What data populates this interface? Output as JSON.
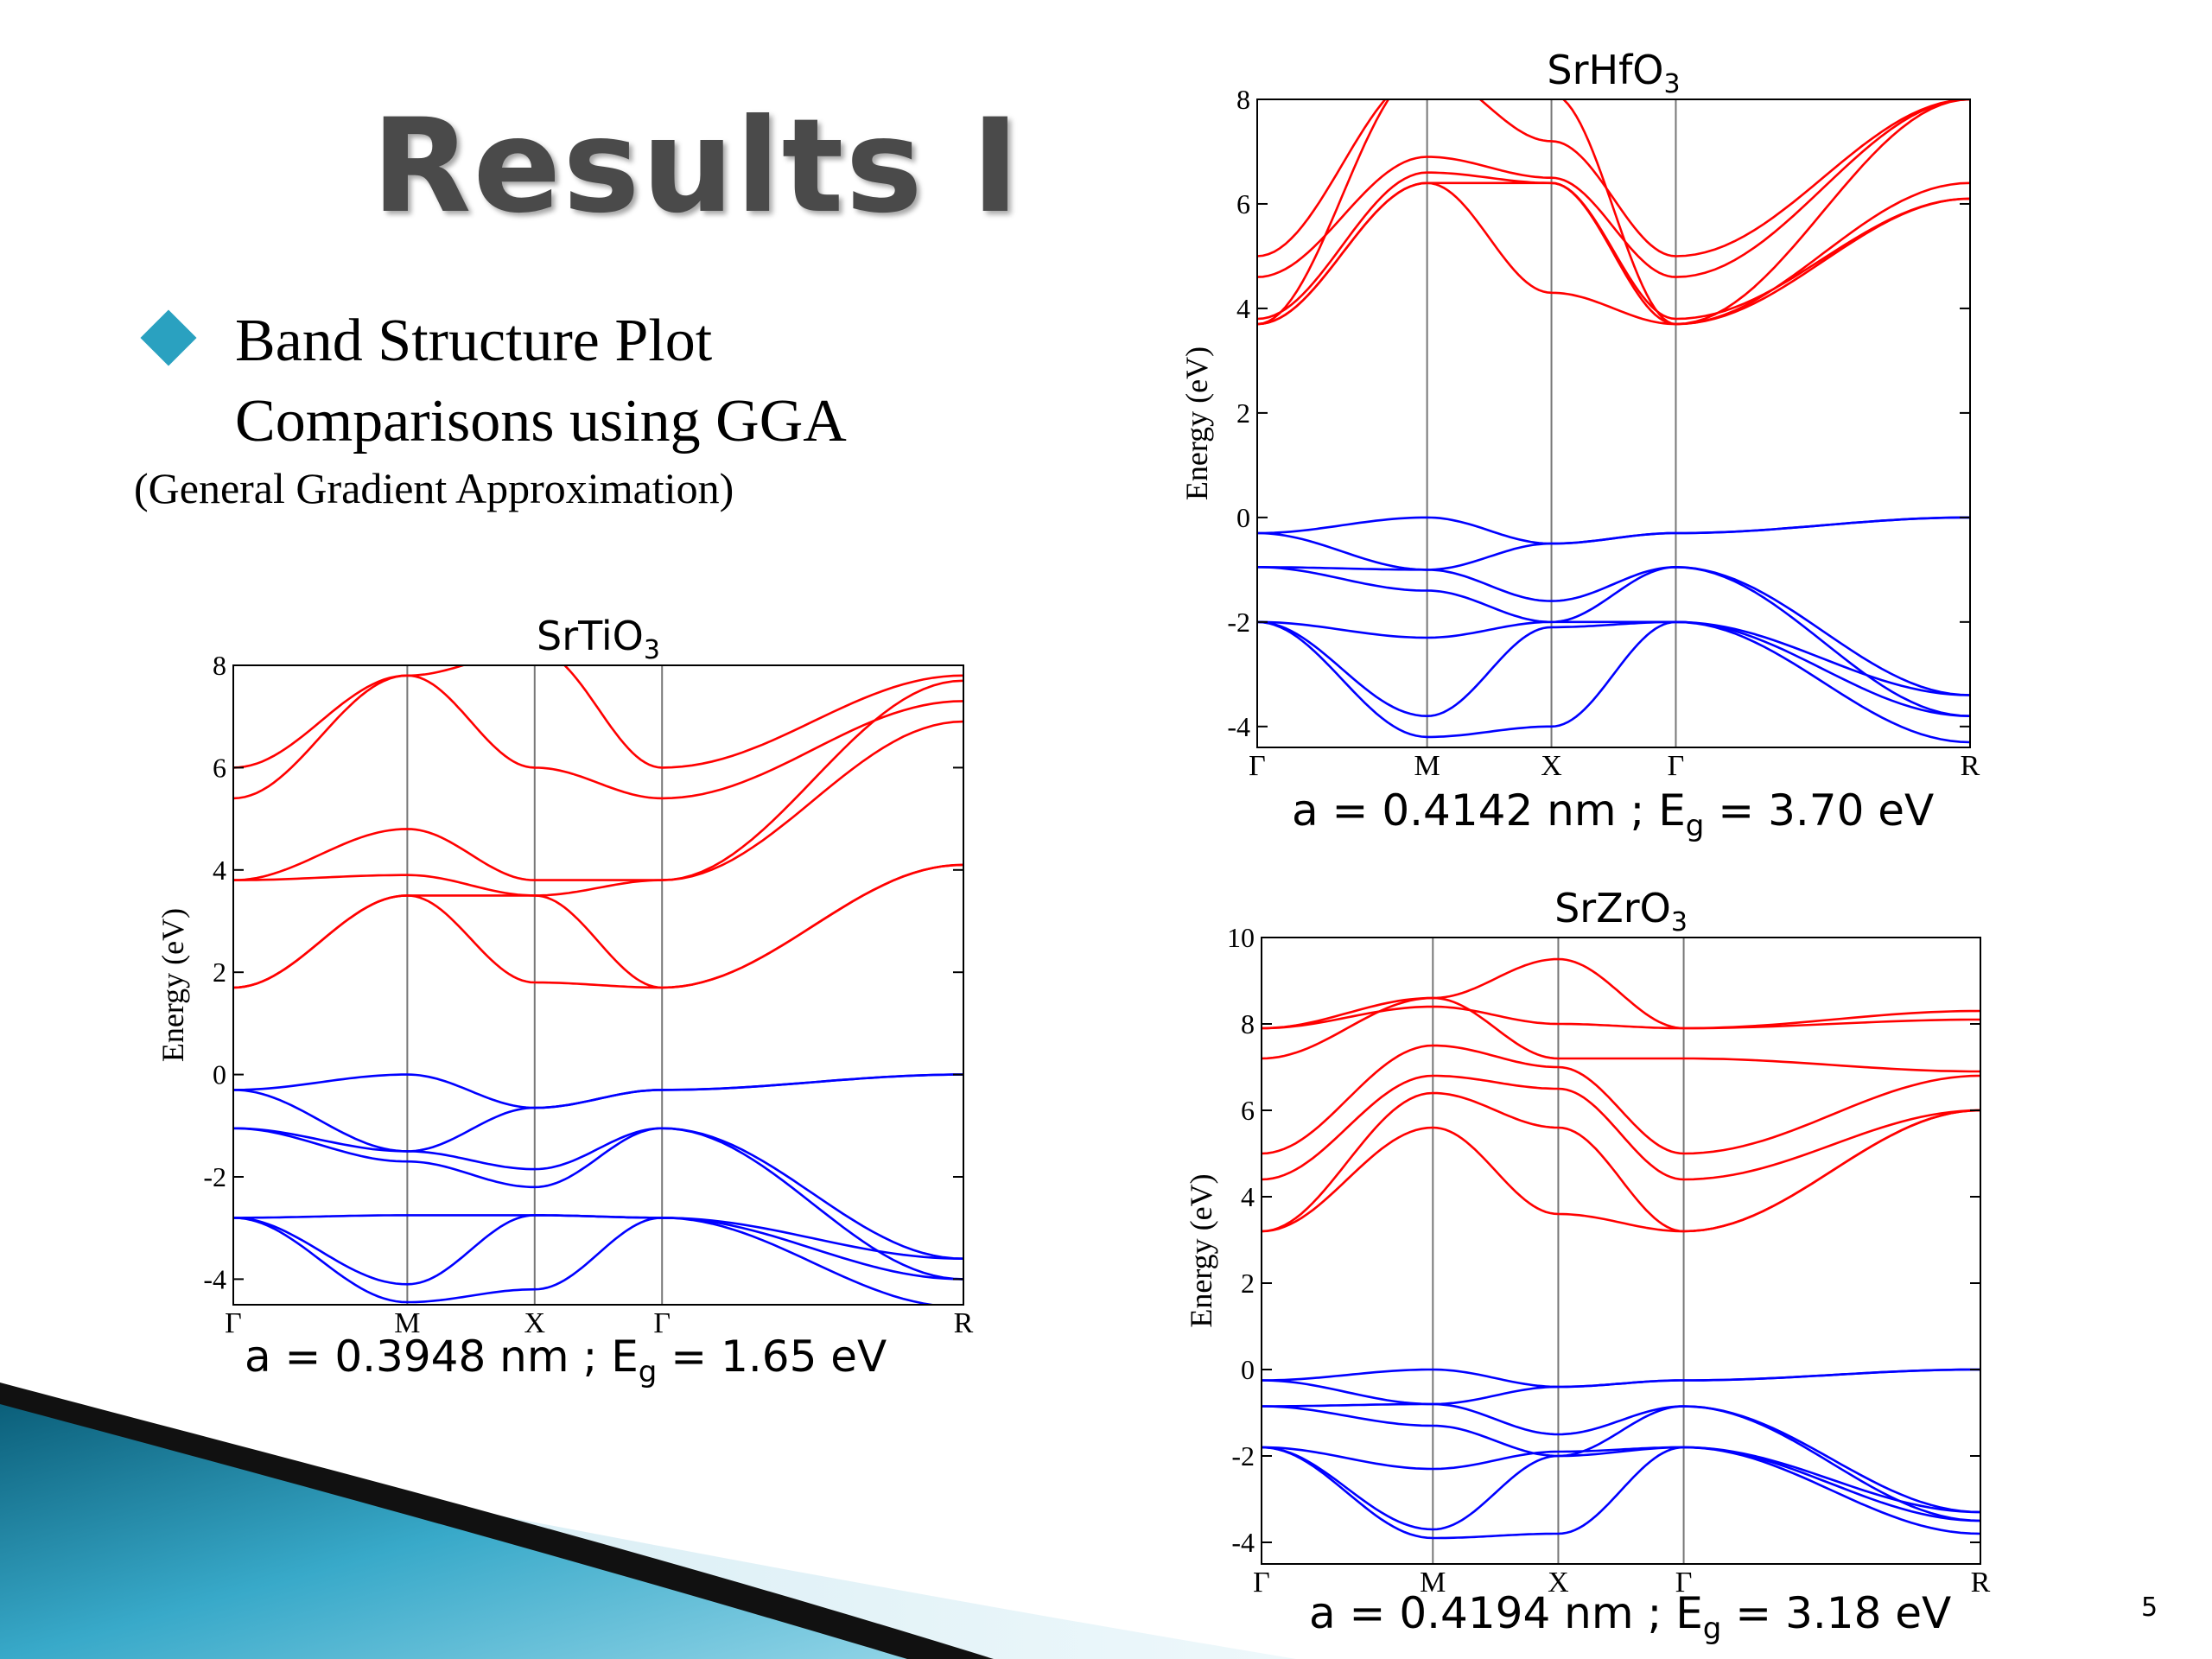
{
  "slide": {
    "title": "Results I",
    "bullet_line1": "Band Structure Plot",
    "bullet_line2": "Comparisons using GGA",
    "bullet_sub": "(General Gradient Approximation)",
    "page_number": "5",
    "colors": {
      "accent": "#2aa1c0",
      "title": "#4a4a4a"
    }
  },
  "plots": [
    {
      "title_main": "SrTiO",
      "title_sub": "3",
      "ylabel": "Energy (eV)",
      "yticks": [
        "-4",
        "-2",
        "0",
        "2",
        "4",
        "6",
        "8"
      ],
      "ylim": [
        -4.5,
        8
      ],
      "kpoints": [
        "Γ",
        "M",
        "X",
        "Γ",
        "R"
      ],
      "kpos": [
        0,
        1,
        1.732,
        2.464,
        4.196
      ],
      "caption": {
        "a_text": "a = 0.3948 nm ; E",
        "sub": "g",
        "eg_text": " = 1.65 eV"
      },
      "conduction_color": "#ff0000",
      "valence_color": "#0000ff",
      "conduction": [
        [
          6.0,
          7.8,
          8.3,
          6.0,
          7.8
        ],
        [
          5.4,
          7.8,
          6.0,
          5.4,
          7.3
        ],
        [
          3.8,
          4.8,
          3.8,
          3.8,
          6.9
        ],
        [
          3.8,
          3.9,
          3.5,
          3.8,
          7.7
        ],
        [
          1.7,
          3.5,
          3.5,
          1.7,
          4.1
        ],
        [
          1.7,
          3.5,
          1.8,
          1.7,
          4.1
        ]
      ],
      "valence": [
        [
          -0.3,
          0.0,
          -0.65,
          -0.3,
          0.0
        ],
        [
          -0.3,
          -1.5,
          -0.65,
          -0.3,
          0.0
        ],
        [
          -1.05,
          -1.5,
          -1.85,
          -1.05,
          -3.6
        ],
        [
          -1.05,
          -1.7,
          -2.2,
          -1.05,
          -4.0
        ],
        [
          -2.8,
          -2.75,
          -2.75,
          -2.8,
          -3.6
        ],
        [
          -2.8,
          -4.1,
          -2.75,
          -2.8,
          -4.0
        ],
        [
          -2.8,
          -4.45,
          -4.2,
          -2.8,
          -4.55
        ]
      ]
    },
    {
      "title_main": "SrHfO",
      "title_sub": "3",
      "ylabel": "Energy (eV)",
      "yticks": [
        "-4",
        "-2",
        "0",
        "2",
        "4",
        "6",
        "8"
      ],
      "ylim": [
        -4.4,
        8
      ],
      "kpoints": [
        "Γ",
        "M",
        "X",
        "Γ",
        "R"
      ],
      "kpos": [
        0,
        1,
        1.732,
        2.464,
        4.196
      ],
      "caption": {
        "a_text": "a = 0.4142 nm ; E",
        "sub": "g",
        "eg_text": " = 3.70 eV"
      },
      "conduction_color": "#ff0000",
      "valence_color": "#0000ff",
      "conduction": [
        [
          5.0,
          8.5,
          7.2,
          5.0,
          8.0
        ],
        [
          4.6,
          6.9,
          6.5,
          4.6,
          8.0
        ],
        [
          3.8,
          6.6,
          6.4,
          3.8,
          6.1
        ],
        [
          3.7,
          6.4,
          6.4,
          3.7,
          6.1
        ],
        [
          3.7,
          6.4,
          4.3,
          3.7,
          6.4
        ],
        [
          3.7,
          8.6,
          8.1,
          3.7,
          8.0
        ]
      ],
      "valence": [
        [
          -0.3,
          0.0,
          -0.5,
          -0.3,
          0.0
        ],
        [
          -0.3,
          -1.0,
          -0.5,
          -0.3,
          0.0
        ],
        [
          -0.95,
          -1.0,
          -1.6,
          -0.95,
          -3.4
        ],
        [
          -0.95,
          -1.4,
          -2.0,
          -0.95,
          -3.8
        ],
        [
          -2.0,
          -2.3,
          -2.0,
          -2.0,
          -3.4
        ],
        [
          -2.0,
          -3.8,
          -2.1,
          -2.0,
          -3.8
        ],
        [
          -2.0,
          -4.2,
          -4.0,
          -2.0,
          -4.3
        ]
      ]
    },
    {
      "title_main": "SrZrO",
      "title_sub": "3",
      "ylabel": "Energy (eV)",
      "yticks": [
        "-4",
        "-2",
        "0",
        "2",
        "4",
        "6",
        "8",
        "10"
      ],
      "ylim": [
        -4.5,
        10
      ],
      "kpoints": [
        "Γ",
        "M",
        "X",
        "Γ",
        "R"
      ],
      "kpos": [
        0,
        1,
        1.732,
        2.464,
        4.196
      ],
      "caption": {
        "a_text": "a = 0.4194 nm ; E",
        "sub": "g",
        "eg_text": " = 3.18 eV"
      },
      "conduction_color": "#ff0000",
      "valence_color": "#0000ff",
      "conduction": [
        [
          7.9,
          8.6,
          9.5,
          7.9,
          8.3
        ],
        [
          7.9,
          8.4,
          8.0,
          7.9,
          8.1
        ],
        [
          7.2,
          8.6,
          7.2,
          7.2,
          6.9
        ],
        [
          5.0,
          7.5,
          7.0,
          5.0,
          6.8
        ],
        [
          4.4,
          6.8,
          6.5,
          4.4,
          6.0
        ],
        [
          3.2,
          6.4,
          5.6,
          3.2,
          6.0
        ],
        [
          3.2,
          5.6,
          3.6,
          3.2,
          6.0
        ]
      ],
      "valence": [
        [
          -0.25,
          0.0,
          -0.4,
          -0.25,
          0.0
        ],
        [
          -0.25,
          -0.8,
          -0.4,
          -0.25,
          0.0
        ],
        [
          -0.85,
          -0.8,
          -1.5,
          -0.85,
          -3.3
        ],
        [
          -0.85,
          -1.3,
          -2.0,
          -0.85,
          -3.5
        ],
        [
          -1.8,
          -2.3,
          -1.9,
          -1.8,
          -3.3
        ],
        [
          -1.8,
          -3.7,
          -2.0,
          -1.8,
          -3.5
        ],
        [
          -1.8,
          -3.9,
          -3.8,
          -1.8,
          -3.8
        ]
      ]
    }
  ]
}
